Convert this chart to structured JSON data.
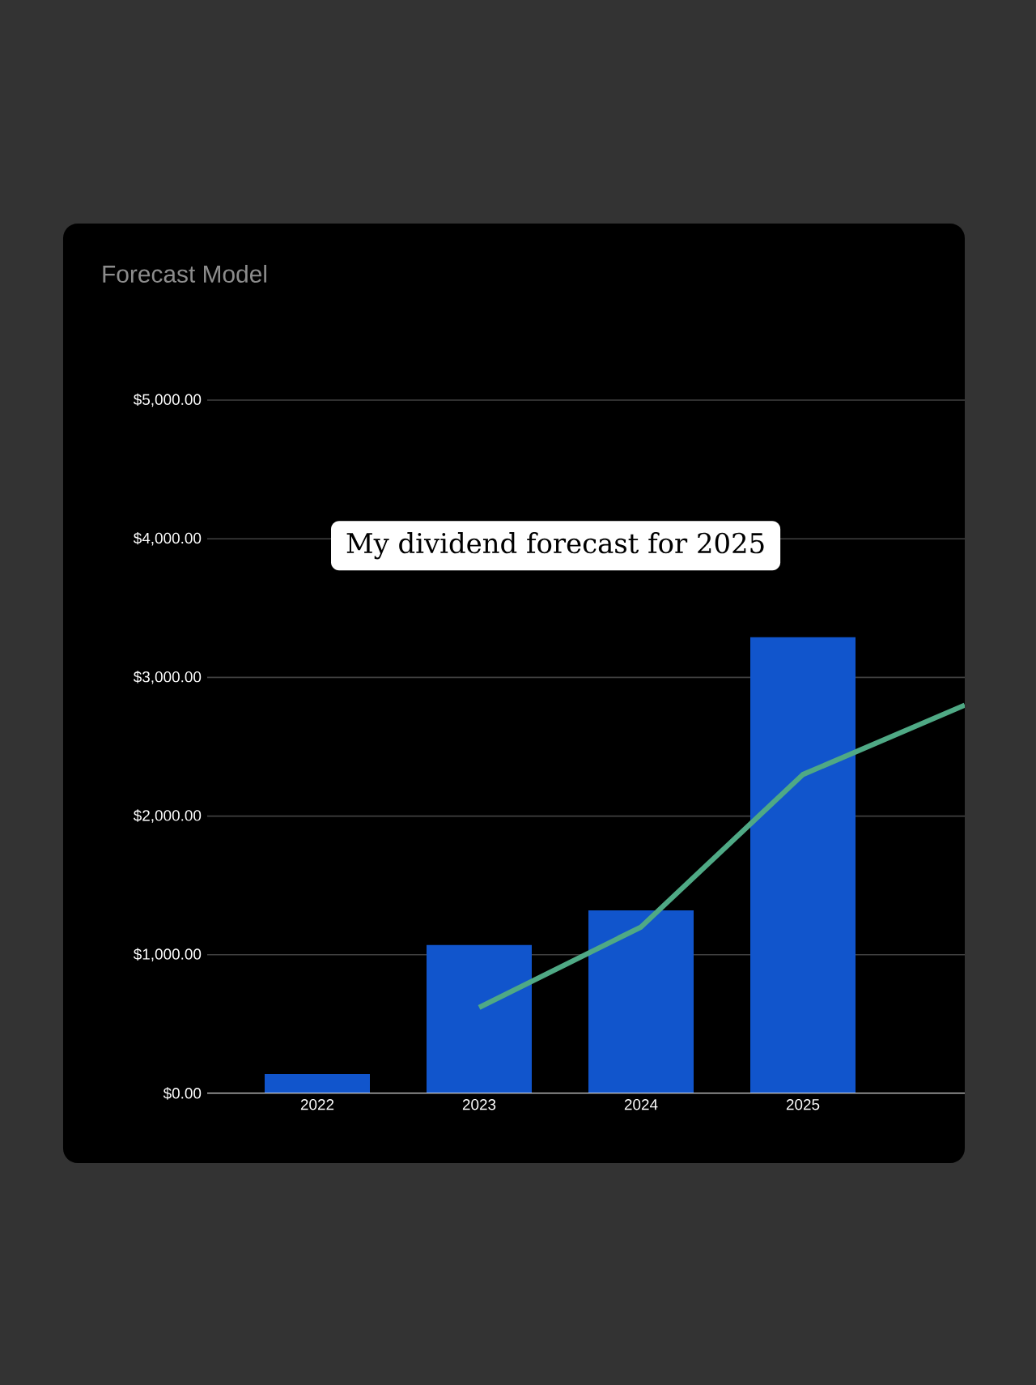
{
  "chart_data": {
    "type": "bar",
    "title": "Forecast Model",
    "categories": [
      "2022",
      "2023",
      "2024",
      "2025",
      null
    ],
    "series": [
      {
        "color": "#1155cc",
        "values": [
          140,
          1070,
          1320,
          3290,
          null
        ]
      },
      {
        "type": "line",
        "color": "#4fa985",
        "values": [
          null,
          620,
          1200,
          2300,
          2800
        ]
      }
    ],
    "ylim": [
      0,
      5000
    ],
    "yticks": [
      {
        "value": 0,
        "label": "$0.00"
      },
      {
        "value": 1000,
        "label": "$1,000.00"
      },
      {
        "value": 2000,
        "label": "$2,000.00"
      },
      {
        "value": 3000,
        "label": "$3,000.00"
      },
      {
        "value": 4000,
        "label": "$4,000.00"
      },
      {
        "value": 5000,
        "label": "$5,000.00"
      }
    ],
    "grid": "y",
    "annotations": [
      "My dividend forecast for 2025"
    ]
  }
}
